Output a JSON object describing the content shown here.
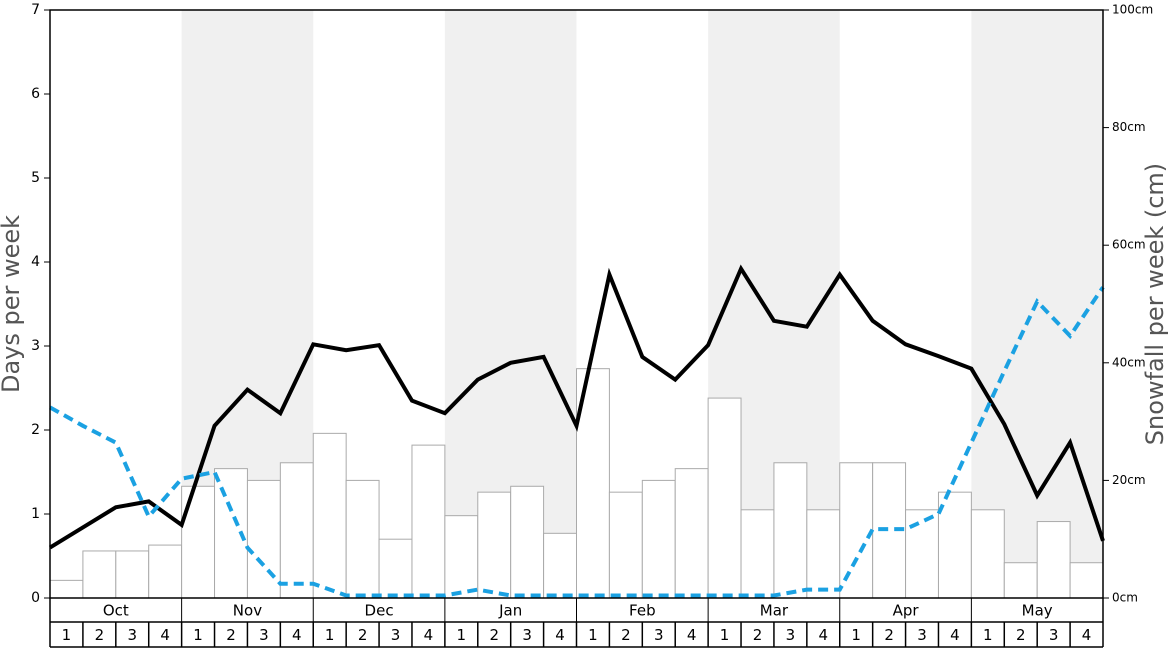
{
  "chart_data": {
    "type": "bar",
    "ylabel": "Days per week",
    "y2label": "Snowfall per week (cm)",
    "months": [
      "Oct",
      "Nov",
      "Dec",
      "Jan",
      "Feb",
      "Mar",
      "Apr",
      "May"
    ],
    "categories": [
      "1",
      "2",
      "3",
      "4",
      "1",
      "2",
      "3",
      "4",
      "1",
      "2",
      "3",
      "4",
      "1",
      "2",
      "3",
      "4",
      "1",
      "2",
      "3",
      "4",
      "1",
      "2",
      "3",
      "4",
      "1",
      "2",
      "3",
      "4",
      "1",
      "2",
      "3",
      "4"
    ],
    "ylim": [
      0,
      7
    ],
    "yticks": [
      0,
      1,
      2,
      3,
      4,
      5,
      6,
      7
    ],
    "y2lim": [
      0,
      100
    ],
    "y2ticks": [
      {
        "value": 0,
        "label": "0cm"
      },
      {
        "value": 20,
        "label": "20cm"
      },
      {
        "value": 40,
        "label": "40cm"
      },
      {
        "value": 60,
        "label": "60cm"
      },
      {
        "value": 80,
        "label": "80cm"
      },
      {
        "value": 100,
        "label": "100cm"
      }
    ],
    "bars": {
      "axis": "y2",
      "color": "#ffffff",
      "edge": "#aaaaaa",
      "values": [
        3,
        8,
        8,
        9,
        19,
        22,
        20,
        23,
        28,
        20,
        10,
        26,
        14,
        18,
        19,
        11,
        39,
        18,
        20,
        22,
        34,
        15,
        23,
        15,
        23,
        23,
        15,
        18,
        15,
        6,
        13,
        6
      ]
    },
    "lines": {
      "type": "line",
      "xlim": [
        0,
        32
      ],
      "x": [
        0,
        1,
        2,
        3,
        4,
        5,
        6,
        7,
        8,
        9,
        10,
        11,
        12,
        13,
        14,
        15,
        16,
        17,
        18,
        19,
        20,
        21,
        22,
        23,
        24,
        25,
        26,
        27,
        28,
        29,
        30,
        31,
        32
      ],
      "series": [
        {
          "color": "#000000",
          "style": "solid",
          "values": [
            0.6,
            0.84,
            1.08,
            1.15,
            0.87,
            2.05,
            2.48,
            2.2,
            3.02,
            2.95,
            3.01,
            2.35,
            2.2,
            2.6,
            2.8,
            2.87,
            2.05,
            3.85,
            2.87,
            2.6,
            3.01,
            3.92,
            3.3,
            3.23,
            3.85,
            3.3,
            3.02,
            2.88,
            2.73,
            2.07,
            1.22,
            1.85,
            0.68
          ]
        },
        {
          "color": "#1ba1e2",
          "style": "dashed",
          "values": [
            2.27,
            2.05,
            1.85,
            0.97,
            1.42,
            1.5,
            0.6,
            0.17,
            0.17,
            0.03,
            0.03,
            0.03,
            0.03,
            0.1,
            0.03,
            0.03,
            0.03,
            0.03,
            0.03,
            0.03,
            0.03,
            0.03,
            0.03,
            0.1,
            0.1,
            0.82,
            0.82,
            1.0,
            1.85,
            2.7,
            3.53,
            3.12,
            3.7
          ]
        }
      ]
    }
  }
}
